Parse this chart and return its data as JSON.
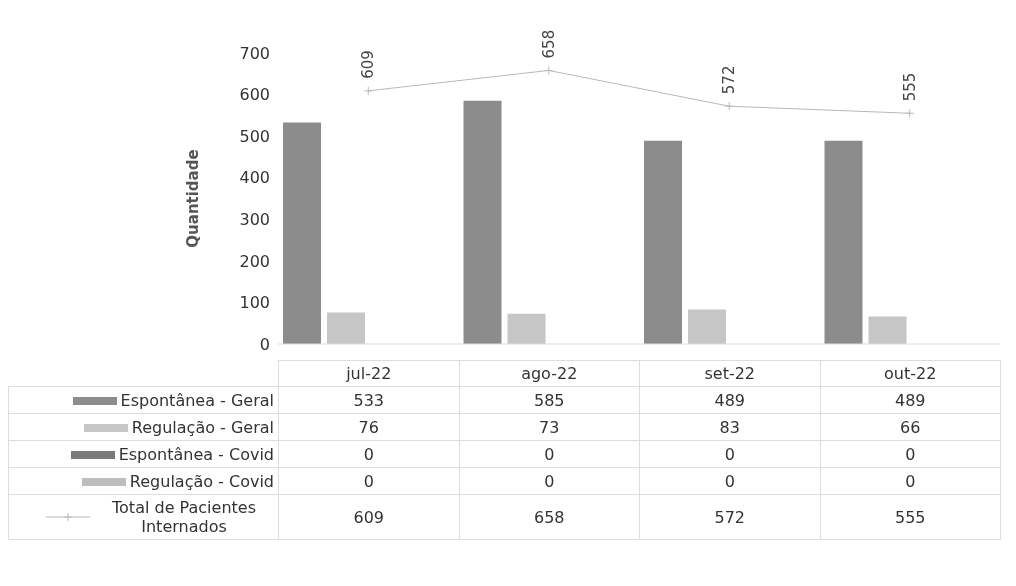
{
  "chart_data": {
    "type": "bar",
    "ylabel": "Quantidade",
    "categories": [
      "jul-22",
      "ago-22",
      "set-22",
      "out-22"
    ],
    "series": [
      {
        "name": "Espontânea - Geral",
        "color": "#8c8c8c",
        "values": [
          533,
          585,
          489,
          489
        ]
      },
      {
        "name": "Regulação - Geral",
        "color": "#c6c6c6",
        "values": [
          76,
          73,
          83,
          66
        ]
      },
      {
        "name": "Espontânea - Covid",
        "color": "#7a7a7a",
        "values": [
          0,
          0,
          0,
          0
        ]
      },
      {
        "name": "Regulação - Covid",
        "color": "#bdbdbd",
        "values": [
          0,
          0,
          0,
          0
        ]
      },
      {
        "name": "Total de Pacientes Internados",
        "type": "line",
        "color": "#b8b8b8",
        "marker": "cross",
        "values": [
          609,
          658,
          572,
          555
        ],
        "value_labels": [
          "609",
          "658",
          "572",
          "555"
        ]
      }
    ],
    "ylim": [
      0,
      700
    ],
    "yticks": [
      0,
      100,
      200,
      300,
      400,
      500,
      600,
      700
    ],
    "grid": false,
    "legend": "bottom",
    "data_labels": true
  }
}
